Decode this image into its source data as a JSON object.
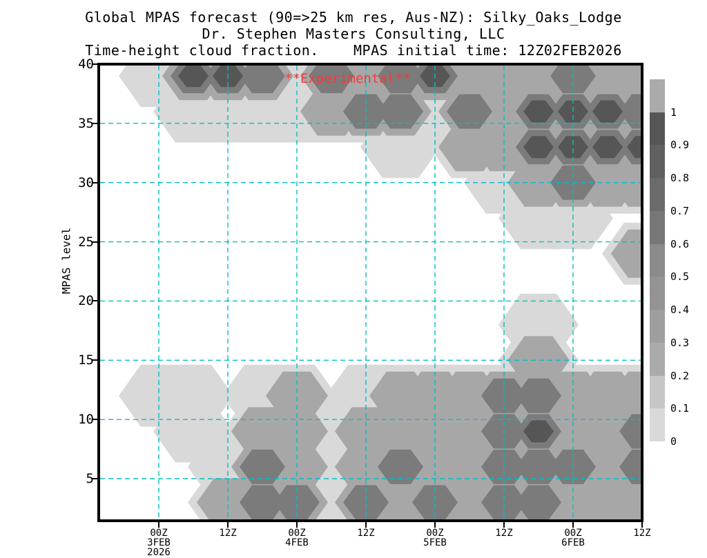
{
  "title": {
    "line1": "Global MPAS forecast (90=>25 km res, Aus-NZ): Silky_Oaks_Lodge",
    "line2": "Dr. Stephen Masters Consulting, LLC",
    "line3": "Time-height cloud fraction.    MPAS initial time: 12Z02FEB2026"
  },
  "watermark": "**Experimental**",
  "colors": {
    "axis": "#000000",
    "gridline": "#00bfc8",
    "watermark": "#f23c3c",
    "background": "#ffffff",
    "shade_light": "#d9d9d9",
    "shade_medium": "#a7a7a7",
    "shade_dark": "#7b7b7b",
    "shade_darkest": "#565656"
  },
  "y_axis": {
    "title": "MPAS level",
    "tick_labels": [
      "40",
      "35",
      "30",
      "25",
      "20",
      "15",
      "10",
      "5"
    ]
  },
  "x_axis": {
    "tick_labels": [
      [
        "00Z",
        "3FEB",
        "2026"
      ],
      [
        "12Z"
      ],
      [
        "00Z",
        "4FEB"
      ],
      [
        "12Z"
      ],
      [
        "00Z",
        "5FEB"
      ],
      [
        "12Z"
      ],
      [
        "00Z",
        "6FEB"
      ],
      [
        "12Z"
      ]
    ]
  },
  "colorbar": {
    "labels_top_to_bottom": [
      "1",
      "0.9",
      "0.8",
      "0.7",
      "0.6",
      "0.5",
      "0.4",
      "0.3",
      "0.2",
      "0.1",
      "0"
    ],
    "segment_colors_top_to_bottom": [
      "#ababab",
      "#565656",
      "#606060",
      "#6b6b6b",
      "#777777",
      "#8b8b8b",
      "#949494",
      "#9e9e9e",
      "#ababab",
      "#c6c6c6",
      "#d9d9d9"
    ]
  },
  "chart_data": {
    "type": "heatmap",
    "title": "Global MPAS forecast (90=>25 km res, Aus-NZ): Silky_Oaks_Lodge",
    "subtitle": "Dr. Stephen Masters Consulting, LLC",
    "caption": "Time-height cloud fraction.  MPAS initial time: 12Z02FEB2026",
    "xlabel": "",
    "ylabel": "MPAS level",
    "init_time": "12Z02FEB2026",
    "x_tick_times": [
      "00Z 3FEB 2026",
      "12Z 3FEB",
      "00Z 4FEB",
      "12Z 4FEB",
      "00Z 5FEB",
      "12Z 5FEB",
      "00Z 6FEB",
      "12Z 6FEB"
    ],
    "x_hours_since_init": [
      0,
      6,
      12,
      18,
      24,
      30,
      36,
      42,
      48,
      54,
      60,
      66,
      72,
      78,
      84,
      90,
      96
    ],
    "levels": [
      39,
      36,
      33,
      30,
      27,
      24,
      21,
      18,
      15,
      12,
      9,
      6,
      3
    ],
    "cloud_fraction_grid": [
      [
        0,
        0,
        0.1,
        0.8,
        0.9,
        0.7,
        0.2,
        0.6,
        0.5,
        0.6,
        0.8,
        0.5,
        0.4,
        0.5,
        0.7,
        0.5,
        0.4
      ],
      [
        0,
        0,
        0,
        0.2,
        0.2,
        0.1,
        0.2,
        0.3,
        0.6,
        0.7,
        0.15,
        0.6,
        0.5,
        0.8,
        0.9,
        0.8,
        0.7
      ],
      [
        0,
        0,
        0,
        0,
        0,
        0,
        0,
        0,
        0,
        0.1,
        0,
        0.3,
        0.3,
        0.8,
        0.9,
        0.9,
        0.8
      ],
      [
        0,
        0,
        0,
        0,
        0,
        0,
        0,
        0,
        0,
        0,
        0,
        0,
        0.2,
        0.5,
        0.7,
        0.5,
        0.5
      ],
      [
        0,
        0,
        0,
        0,
        0,
        0,
        0,
        0,
        0,
        0,
        0,
        0,
        0,
        0.1,
        0.1,
        0,
        0
      ],
      [
        0,
        0,
        0,
        0,
        0,
        0,
        0,
        0,
        0,
        0,
        0,
        0,
        0,
        0,
        0,
        0,
        0.3
      ],
      [
        0,
        0,
        0,
        0,
        0,
        0,
        0,
        0,
        0,
        0,
        0,
        0,
        0,
        0,
        0,
        0,
        0
      ],
      [
        0,
        0,
        0,
        0,
        0,
        0,
        0,
        0,
        0,
        0,
        0,
        0,
        0,
        0.15,
        0,
        0,
        0
      ],
      [
        0,
        0,
        0,
        0,
        0,
        0,
        0,
        0,
        0,
        0,
        0,
        0,
        0,
        0.5,
        0,
        0,
        0
      ],
      [
        0,
        0,
        0.1,
        0.2,
        0,
        0.1,
        0.3,
        0,
        0.1,
        0.3,
        0.3,
        0.5,
        0.6,
        0.7,
        0.4,
        0.3,
        0.4
      ],
      [
        0,
        0,
        0,
        0.1,
        0,
        0.4,
        0.4,
        0.1,
        0.4,
        0.5,
        0.5,
        0.4,
        0.6,
        0.8,
        0.5,
        0.4,
        0.6
      ],
      [
        0,
        0,
        0,
        0,
        0.2,
        0.6,
        0.5,
        0.2,
        0.5,
        0.6,
        0.5,
        0.5,
        0.6,
        0.7,
        0.6,
        0.5,
        0.6
      ],
      [
        0,
        0,
        0,
        0,
        0.4,
        0.7,
        0.6,
        0.2,
        0.6,
        0.5,
        0.6,
        0.5,
        0.6,
        0.6,
        0.5,
        0.5,
        0.5
      ]
    ],
    "value_range": [
      0,
      1
    ],
    "colorbar_levels": [
      0,
      0.1,
      0.2,
      0.3,
      0.4,
      0.5,
      0.6,
      0.7,
      0.8,
      0.9,
      1
    ],
    "ylim": [
      1,
      40
    ],
    "y_ticks": [
      5,
      10,
      15,
      20,
      25,
      30,
      35,
      40
    ],
    "grid": "dashed cyan gridlines every 12h and every 5 levels",
    "legend_position": "right vertical grayscale colorbar",
    "annotations": [
      "**Experimental**"
    ]
  }
}
